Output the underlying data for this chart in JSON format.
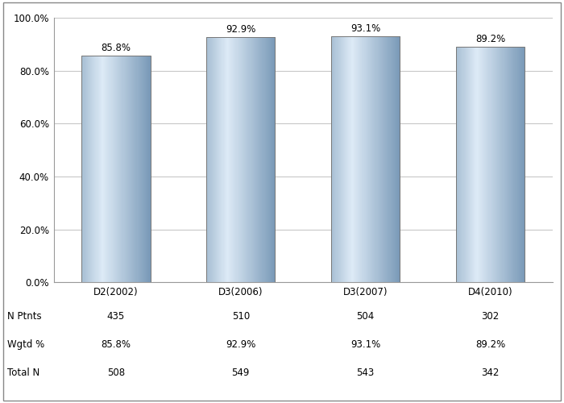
{
  "categories": [
    "D2(2002)",
    "D3(2006)",
    "D3(2007)",
    "D4(2010)"
  ],
  "values": [
    85.8,
    92.9,
    93.1,
    89.2
  ],
  "value_labels": [
    "85.8%",
    "92.9%",
    "93.1%",
    "89.2%"
  ],
  "n_ptnts": [
    435,
    510,
    504,
    302
  ],
  "wgtd_pct": [
    "85.8%",
    "92.9%",
    "93.1%",
    "89.2%"
  ],
  "total_n": [
    508,
    549,
    543,
    342
  ],
  "ylim": [
    0,
    100
  ],
  "yticks": [
    0,
    20,
    40,
    60,
    80,
    100
  ],
  "ytick_labels": [
    "0.0%",
    "20.0%",
    "40.0%",
    "60.0%",
    "80.0%",
    "100.0%"
  ],
  "bar_color_left": "#a8bfd4",
  "bar_color_mid": "#ddeaf6",
  "bar_color_right": "#7a9ab8",
  "bar_width": 0.55,
  "background_color": "#ffffff",
  "grid_color": "#c8c8c8",
  "label_fontsize": 8.5,
  "tick_fontsize": 8.5,
  "table_fontsize": 8.5,
  "row_labels": [
    "N Ptnts",
    "Wgtd %",
    "Total N"
  ],
  "border_color": "#777777"
}
